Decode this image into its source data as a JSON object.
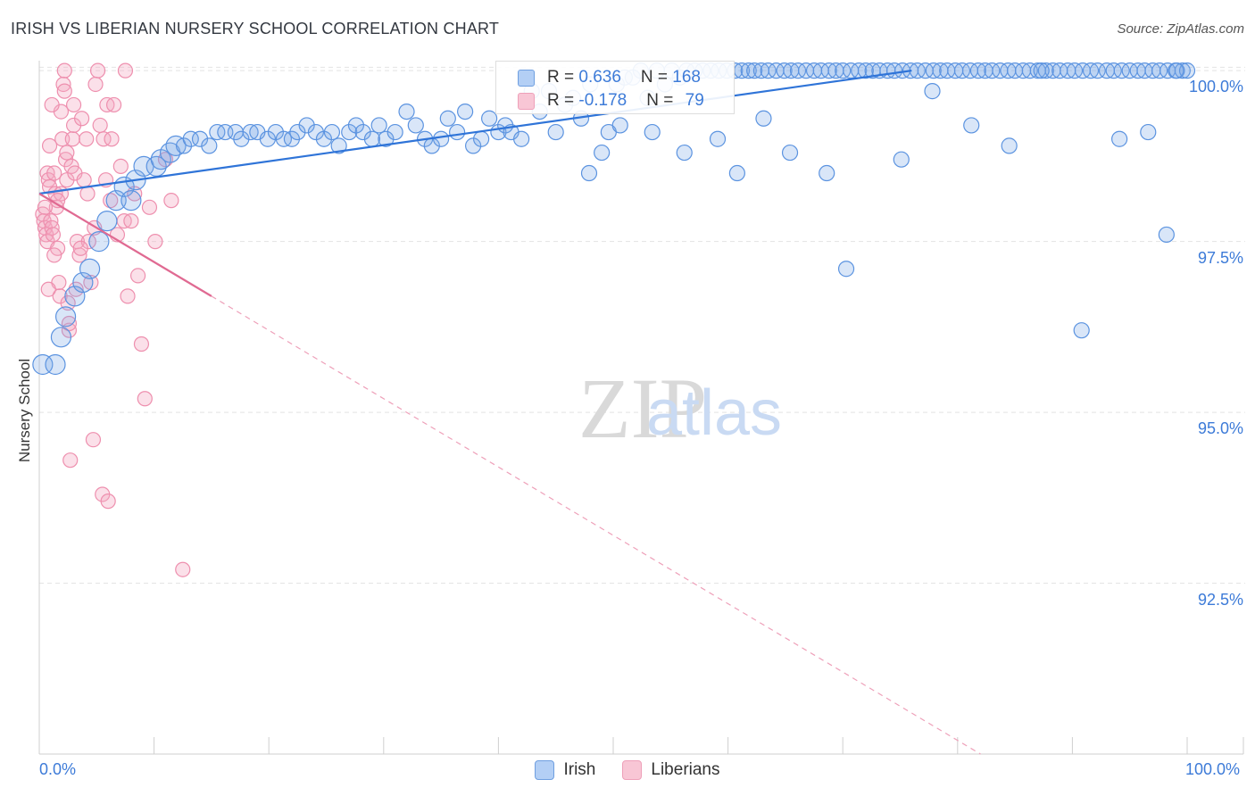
{
  "header": {
    "title": "IRISH VS LIBERIAN NURSERY SCHOOL CORRELATION CHART",
    "source": "Source: ZipAtlas.com"
  },
  "watermark": {
    "zip": "ZIP",
    "atlas": "atlas"
  },
  "stats": {
    "irish": {
      "r_label": "R = ",
      "r_value": "0.636",
      "n_label": "N = ",
      "n_value": "168"
    },
    "liberians": {
      "r_label": "R = ",
      "r_value": "-0.178",
      "n_label": "N = ",
      "n_value": "79"
    }
  },
  "colors": {
    "irish": "#5b93e0",
    "irish_line": "#2f74d8",
    "liberians": "#ee8fae",
    "liberians_line": "#e06a92",
    "axis_text": "#3d7bd8"
  },
  "chart_data": {
    "type": "scatter",
    "title": "IRISH VS LIBERIAN NURSERY SCHOOL CORRELATION CHART",
    "xlabel": "",
    "ylabel": "Nursery School",
    "xlim": [
      0,
      100
    ],
    "ylim": [
      90.0,
      100.25
    ],
    "x_tick_labels": [
      "0.0%",
      "100.0%"
    ],
    "y_ticks": [
      92.5,
      95.0,
      97.5,
      100.0
    ],
    "y_tick_labels": [
      "92.5%",
      "95.0%",
      "97.5%",
      "100.0%"
    ],
    "legend": [
      "Irish",
      "Liberians"
    ],
    "series": [
      {
        "name": "Irish",
        "trend": {
          "x": [
            0,
            76
          ],
          "y": [
            98.2,
            100.0
          ]
        },
        "points": [
          [
            0.3,
            95.7
          ],
          [
            1.4,
            95.7
          ],
          [
            1.9,
            96.1
          ],
          [
            2.3,
            96.4
          ],
          [
            3.1,
            96.7
          ],
          [
            3.8,
            96.9
          ],
          [
            4.4,
            97.1
          ],
          [
            5.2,
            97.5
          ],
          [
            5.9,
            97.8
          ],
          [
            6.7,
            98.1
          ],
          [
            7.4,
            98.3
          ],
          [
            8.0,
            98.1
          ],
          [
            8.4,
            98.4
          ],
          [
            9.1,
            98.6
          ],
          [
            10.2,
            98.6
          ],
          [
            10.6,
            98.7
          ],
          [
            11.4,
            98.8
          ],
          [
            11.9,
            98.9
          ],
          [
            12.6,
            98.9
          ],
          [
            13.2,
            99.0
          ],
          [
            14.0,
            99.0
          ],
          [
            14.8,
            98.9
          ],
          [
            15.5,
            99.1
          ],
          [
            16.2,
            99.1
          ],
          [
            17.1,
            99.1
          ],
          [
            17.6,
            99.0
          ],
          [
            18.4,
            99.1
          ],
          [
            19.0,
            99.1
          ],
          [
            19.9,
            99.0
          ],
          [
            20.6,
            99.1
          ],
          [
            21.3,
            99.0
          ],
          [
            22.0,
            99.0
          ],
          [
            22.5,
            99.1
          ],
          [
            23.3,
            99.2
          ],
          [
            24.1,
            99.1
          ],
          [
            24.8,
            99.0
          ],
          [
            25.5,
            99.1
          ],
          [
            26.1,
            98.9
          ],
          [
            27.0,
            99.1
          ],
          [
            27.6,
            99.2
          ],
          [
            28.2,
            99.1
          ],
          [
            29.0,
            99.0
          ],
          [
            29.6,
            99.2
          ],
          [
            30.2,
            99.0
          ],
          [
            31.0,
            99.1
          ],
          [
            32.0,
            99.4
          ],
          [
            32.8,
            99.2
          ],
          [
            33.6,
            99.0
          ],
          [
            34.2,
            98.9
          ],
          [
            35.0,
            99.0
          ],
          [
            35.6,
            99.3
          ],
          [
            36.4,
            99.1
          ],
          [
            37.1,
            99.4
          ],
          [
            37.8,
            98.9
          ],
          [
            38.5,
            99.0
          ],
          [
            39.2,
            99.3
          ],
          [
            40.0,
            99.1
          ],
          [
            40.6,
            99.2
          ],
          [
            41.1,
            99.1
          ],
          [
            42.0,
            99.0
          ],
          [
            42.9,
            99.7
          ],
          [
            43.6,
            99.4
          ],
          [
            44.4,
            99.7
          ],
          [
            45.0,
            99.1
          ],
          [
            45.8,
            99.5
          ],
          [
            46.5,
            99.6
          ],
          [
            47.2,
            99.3
          ],
          [
            48.0,
            99.8
          ],
          [
            49.0,
            98.8
          ],
          [
            49.6,
            99.1
          ],
          [
            50.3,
            99.8
          ],
          [
            51.0,
            99.9
          ],
          [
            51.7,
            99.9
          ],
          [
            52.4,
            100.0
          ],
          [
            53.0,
            99.6
          ],
          [
            53.8,
            100.0
          ],
          [
            54.5,
            99.8
          ],
          [
            55.1,
            100.0
          ],
          [
            55.8,
            99.9
          ],
          [
            56.4,
            100.0
          ],
          [
            57.1,
            100.0
          ],
          [
            57.8,
            100.0
          ],
          [
            58.5,
            100.0
          ],
          [
            59.2,
            100.0
          ],
          [
            59.9,
            100.0
          ],
          [
            60.6,
            100.0
          ],
          [
            61.2,
            100.0
          ],
          [
            61.8,
            100.0
          ],
          [
            62.3,
            100.0
          ],
          [
            62.9,
            100.0
          ],
          [
            63.5,
            100.0
          ],
          [
            64.2,
            100.0
          ],
          [
            64.9,
            100.0
          ],
          [
            65.5,
            100.0
          ],
          [
            66.1,
            100.0
          ],
          [
            66.8,
            100.0
          ],
          [
            67.5,
            100.0
          ],
          [
            68.1,
            100.0
          ],
          [
            68.8,
            100.0
          ],
          [
            69.4,
            100.0
          ],
          [
            70.0,
            100.0
          ],
          [
            70.7,
            100.0
          ],
          [
            71.4,
            100.0
          ],
          [
            72.0,
            100.0
          ],
          [
            72.6,
            100.0
          ],
          [
            73.2,
            100.0
          ],
          [
            73.9,
            100.0
          ],
          [
            74.5,
            100.0
          ],
          [
            75.2,
            100.0
          ],
          [
            75.9,
            100.0
          ],
          [
            76.5,
            100.0
          ],
          [
            77.2,
            100.0
          ],
          [
            77.9,
            100.0
          ],
          [
            78.5,
            100.0
          ],
          [
            79.1,
            100.0
          ],
          [
            79.8,
            100.0
          ],
          [
            80.4,
            100.0
          ],
          [
            81.1,
            100.0
          ],
          [
            81.8,
            100.0
          ],
          [
            82.4,
            100.0
          ],
          [
            83.0,
            100.0
          ],
          [
            83.7,
            100.0
          ],
          [
            84.4,
            100.0
          ],
          [
            85.0,
            100.0
          ],
          [
            85.7,
            100.0
          ],
          [
            86.3,
            100.0
          ],
          [
            87.0,
            100.0
          ],
          [
            87.7,
            100.0
          ],
          [
            88.3,
            100.0
          ],
          [
            88.9,
            100.0
          ],
          [
            89.6,
            100.0
          ],
          [
            90.2,
            100.0
          ],
          [
            90.9,
            100.0
          ],
          [
            91.6,
            100.0
          ],
          [
            92.2,
            100.0
          ],
          [
            93.0,
            100.0
          ],
          [
            93.6,
            100.0
          ],
          [
            94.3,
            100.0
          ],
          [
            95.0,
            100.0
          ],
          [
            95.7,
            100.0
          ],
          [
            96.3,
            100.0
          ],
          [
            97.0,
            100.0
          ],
          [
            97.6,
            100.0
          ],
          [
            98.3,
            100.0
          ],
          [
            99.0,
            100.0
          ],
          [
            99.6,
            100.0
          ],
          [
            100.0,
            100.0
          ],
          [
            47.9,
            98.5
          ],
          [
            50.6,
            99.2
          ],
          [
            53.4,
            99.1
          ],
          [
            56.2,
            98.8
          ],
          [
            59.1,
            99.0
          ],
          [
            60.8,
            98.5
          ],
          [
            63.1,
            99.3
          ],
          [
            65.4,
            98.8
          ],
          [
            68.6,
            98.5
          ],
          [
            70.3,
            97.1
          ],
          [
            75.1,
            98.7
          ],
          [
            77.8,
            99.7
          ],
          [
            81.2,
            99.2
          ],
          [
            84.5,
            98.9
          ],
          [
            87.3,
            100.0
          ],
          [
            90.8,
            96.2
          ],
          [
            94.1,
            99.0
          ],
          [
            96.6,
            99.1
          ],
          [
            98.2,
            97.6
          ],
          [
            99.1,
            100.0
          ]
        ]
      },
      {
        "name": "Liberians",
        "trend": {
          "x": [
            0,
            15
          ],
          "y": [
            98.2,
            96.7
          ]
        },
        "trend_extension": {
          "x": [
            15,
            100
          ],
          "y": [
            96.7,
            88.2
          ]
        },
        "points": [
          [
            0.3,
            97.9
          ],
          [
            0.4,
            97.8
          ],
          [
            0.5,
            97.7
          ],
          [
            0.6,
            97.6
          ],
          [
            0.7,
            97.5
          ],
          [
            0.7,
            98.5
          ],
          [
            0.8,
            98.4
          ],
          [
            0.9,
            98.3
          ],
          [
            1.0,
            97.8
          ],
          [
            1.1,
            97.7
          ],
          [
            1.2,
            97.6
          ],
          [
            1.3,
            98.5
          ],
          [
            1.4,
            98.2
          ],
          [
            1.5,
            98.0
          ],
          [
            1.6,
            97.4
          ],
          [
            1.7,
            96.9
          ],
          [
            1.8,
            96.7
          ],
          [
            1.9,
            99.4
          ],
          [
            2.0,
            99.0
          ],
          [
            2.1,
            99.8
          ],
          [
            2.2,
            100.0
          ],
          [
            2.3,
            98.7
          ],
          [
            2.4,
            98.4
          ],
          [
            2.5,
            96.6
          ],
          [
            2.6,
            96.2
          ],
          [
            2.7,
            94.3
          ],
          [
            2.8,
            98.6
          ],
          [
            2.9,
            99.0
          ],
          [
            3.0,
            99.2
          ],
          [
            3.1,
            98.5
          ],
          [
            3.3,
            97.5
          ],
          [
            3.5,
            97.3
          ],
          [
            3.7,
            99.3
          ],
          [
            3.9,
            98.4
          ],
          [
            4.1,
            99.0
          ],
          [
            4.3,
            97.5
          ],
          [
            4.5,
            96.9
          ],
          [
            4.7,
            94.6
          ],
          [
            4.9,
            99.8
          ],
          [
            5.1,
            100.0
          ],
          [
            5.3,
            99.2
          ],
          [
            5.6,
            99.0
          ],
          [
            5.9,
            99.5
          ],
          [
            6.2,
            98.1
          ],
          [
            6.5,
            99.5
          ],
          [
            6.8,
            97.6
          ],
          [
            7.1,
            98.6
          ],
          [
            7.4,
            97.8
          ],
          [
            7.7,
            96.7
          ],
          [
            8.0,
            97.8
          ],
          [
            8.3,
            98.2
          ],
          [
            8.6,
            97.0
          ],
          [
            8.9,
            96.0
          ],
          [
            9.2,
            95.2
          ],
          [
            9.6,
            98.0
          ],
          [
            10.1,
            97.5
          ],
          [
            11.0,
            98.7
          ],
          [
            11.5,
            98.1
          ],
          [
            12.5,
            92.7
          ],
          [
            5.5,
            93.8
          ],
          [
            6.0,
            93.7
          ],
          [
            1.1,
            99.5
          ],
          [
            2.2,
            99.7
          ],
          [
            0.9,
            98.9
          ],
          [
            1.9,
            98.2
          ],
          [
            3.6,
            97.4
          ],
          [
            4.2,
            98.2
          ],
          [
            2.6,
            96.3
          ],
          [
            0.5,
            98.0
          ],
          [
            1.6,
            98.1
          ],
          [
            2.4,
            98.8
          ],
          [
            3.0,
            99.5
          ],
          [
            4.8,
            97.7
          ],
          [
            5.8,
            98.4
          ],
          [
            6.3,
            99.0
          ],
          [
            7.5,
            100.0
          ],
          [
            3.2,
            96.8
          ],
          [
            1.3,
            97.3
          ],
          [
            0.8,
            96.8
          ]
        ]
      }
    ]
  }
}
